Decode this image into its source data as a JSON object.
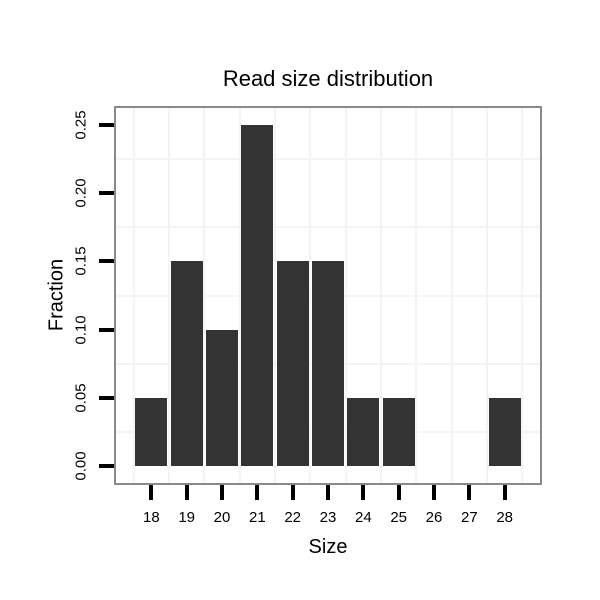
{
  "window": {
    "background_color": "#ffffff"
  },
  "chart_data": {
    "type": "bar",
    "title": "Read size distribution",
    "xlabel": "Size",
    "ylabel": "Fraction",
    "categories": [
      18,
      19,
      20,
      21,
      22,
      23,
      24,
      25,
      26,
      27,
      28
    ],
    "values": [
      0.05,
      0.15,
      0.1,
      0.25,
      0.15,
      0.15,
      0.05,
      0.05,
      0,
      0,
      0.05
    ],
    "x_tick_labels": [
      "18",
      "19",
      "20",
      "21",
      "22",
      "23",
      "24",
      "25",
      "26",
      "27",
      "28"
    ],
    "y_ticks": [
      0,
      0.05,
      0.1,
      0.15,
      0.2,
      0.25
    ],
    "y_tick_labels": [
      "0.00",
      "0.05",
      "0.10",
      "0.15",
      "0.20",
      "0.25"
    ],
    "ylim": [
      0,
      0.25
    ],
    "xlim": [
      17,
      29
    ],
    "bar_width_units": 0.9,
    "grid": "minor-gridlines-only",
    "legend": "none",
    "colors": {
      "bar": "#333333",
      "panel_border": "#8a8a8a",
      "gridline": "#f4f4f4",
      "tick": "#000000",
      "text": "#000000",
      "panel_background": "#ffffff"
    }
  }
}
